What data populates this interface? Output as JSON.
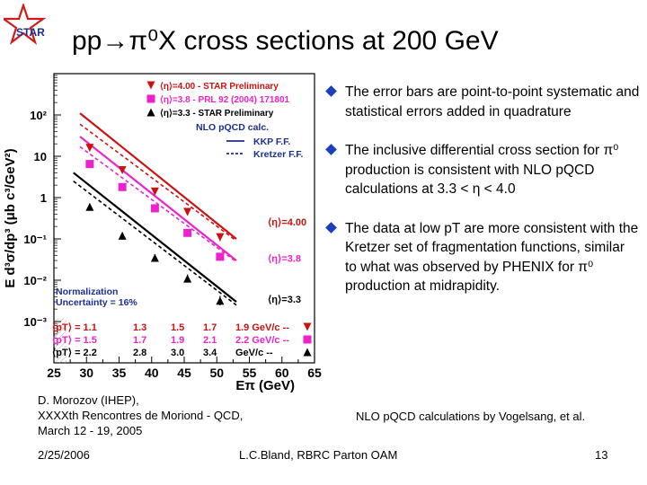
{
  "header": {
    "title": "pp→π⁰X cross sections at 200 GeV"
  },
  "logo": {
    "text": "STAR"
  },
  "bullets": [
    {
      "text": "The error bars are point-to-point systematic and statistical errors added in quadrature"
    },
    {
      "text": "The  inclusive differential cross section for π⁰ production is consistent with NLO pQCD calculations at 3.3 < η < 4.0"
    },
    {
      "text": "The data at low pT are more consistent with the Kretzer set of fragmentation functions, similar to what was observed by PHENIX for π⁰ production at midrapidity."
    }
  ],
  "footer": {
    "credits": [
      "D. Morozov (IHEP),",
      "XXXXth Rencontres de Moriond - QCD,",
      "March 12 - 19, 2005"
    ],
    "nlo_note": "NLO pQCD calculations by Vogelsang, et al.",
    "date": "2/25/2006",
    "presenter": "L.C.Bland, RBRC Parton OAM",
    "page_number": "13"
  },
  "chart_data": {
    "type": "scatter",
    "xlabel": "Eπ (GeV)",
    "ylabel": "E d³σ/dp³ (μb c³/GeV²)",
    "xlim": [
      25,
      65
    ],
    "ylim_log10": [
      -4,
      3
    ],
    "log_y": true,
    "x_ticks": [
      "25",
      "30",
      "35",
      "40",
      "45",
      "50",
      "55",
      "60",
      "65"
    ],
    "y_ticks": [
      {
        "label": "10²",
        "value": 100
      },
      {
        "label": "10",
        "value": 10
      },
      {
        "label": "1",
        "value": 1
      },
      {
        "label": "10⁻¹",
        "value": 0.1
      },
      {
        "label": "10⁻²",
        "value": 0.01
      },
      {
        "label": "10⁻³",
        "value": 0.001
      }
    ],
    "legend": {
      "placement": "top-right",
      "entries": [
        {
          "label": "⟨η⟩=4.00 - STAR Preliminary",
          "marker": "triangle-down",
          "color": "#cc1111"
        },
        {
          "label": "⟨η⟩=3.8 - PRL 92 (2004) 171801",
          "marker": "square",
          "color": "#ee22cc"
        },
        {
          "label": "⟨η⟩=3.3 - STAR Preliminary",
          "marker": "triangle-up",
          "color": "#000000"
        }
      ],
      "nlo_header": "NLO pQCD calc.",
      "nlo_lines": [
        {
          "label": "KKP F.F.",
          "style": "solid"
        },
        {
          "label": "Kretzer F.F.",
          "style": "dashed"
        }
      ]
    },
    "series": [
      {
        "name": "⟨η⟩=4.00",
        "color": "#cc1111",
        "marker": "triangle-down",
        "x": [
          30.5,
          35.5,
          40.5,
          45.5,
          50.5
        ],
        "y": [
          16,
          4.6,
          1.4,
          0.45,
          0.11
        ],
        "err": [
          0.15,
          0.15,
          0.18,
          0.2,
          0.25
        ],
        "kkp": [
          [
            29,
            110
          ],
          [
            53,
            0.1
          ]
        ],
        "kretzer": [
          [
            29,
            60
          ],
          [
            53,
            0.09
          ]
        ]
      },
      {
        "name": "⟨η⟩=3.8",
        "color": "#ee22cc",
        "marker": "square",
        "x": [
          30.5,
          35.5,
          40.5,
          45.5,
          50.5
        ],
        "y": [
          6.5,
          1.8,
          0.55,
          0.14,
          0.037
        ],
        "err": [
          0.12,
          0.12,
          0.15,
          0.18,
          0.2
        ],
        "kkp": [
          [
            29,
            30
          ],
          [
            53,
            0.03
          ]
        ],
        "kretzer": [
          [
            29,
            17
          ],
          [
            53,
            0.028
          ]
        ]
      },
      {
        "name": "⟨η⟩=3.3",
        "color": "#000000",
        "marker": "triangle-up",
        "x": [
          30.5,
          35.5,
          40.5,
          45.5,
          50.5
        ],
        "y": [
          0.6,
          0.12,
          0.035,
          0.011,
          0.0032
        ],
        "err": [
          0.2,
          0.2,
          0.22,
          0.25,
          0.3
        ],
        "kkp": [
          [
            28,
            4
          ],
          [
            53,
            0.003
          ]
        ],
        "kretzer": [
          [
            28,
            2.5
          ],
          [
            53,
            0.0025
          ]
        ]
      }
    ],
    "curve_labels": [
      {
        "text": "⟨η⟩=4.00",
        "color": "#cc1111",
        "value": 0.26
      },
      {
        "text": "⟨η⟩=3.8",
        "color": "#ee22cc",
        "value": 0.034
      },
      {
        "text": "⟨η⟩=3.3",
        "color": "#000000",
        "value": 0.0035
      }
    ],
    "normalization": [
      "Normalization",
      "Uncertainty = 16%"
    ],
    "pt_table": [
      {
        "label": "⟨pT⟩ = 1.1",
        "cells": [
          "1.3",
          "1.5",
          "1.7",
          "1.9 GeV/c --"
        ],
        "color": "#cc1111"
      },
      {
        "label": "⟨pT⟩ = 1.5",
        "cells": [
          "1.7",
          "1.9",
          "2.1",
          "2.2 GeV/c --"
        ],
        "color": "#ee22cc"
      },
      {
        "label": "⟨pT⟩ = 2.2",
        "cells": [
          "2.8",
          "3.0",
          "3.4",
          "GeV/c --"
        ],
        "color": "#000000"
      }
    ]
  }
}
